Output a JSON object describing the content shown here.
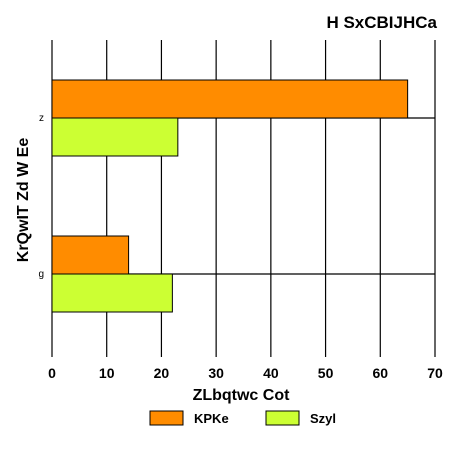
{
  "chart_data": {
    "type": "bar",
    "orientation": "horizontal",
    "title": "H  SxCBIJHCa",
    "xlabel": "ZLbqtwc Cot",
    "ylabel": "KrQwIT Zd W Ee",
    "categories": [
      "z",
      "g"
    ],
    "series": [
      {
        "name": "KPKe",
        "values": [
          65,
          14
        ],
        "color": "#ff8c00"
      },
      {
        "name": "Szyl",
        "values": [
          23,
          22
        ],
        "color": "#ccff33"
      }
    ],
    "xlim": [
      0,
      70
    ],
    "xticks": [
      0,
      10,
      20,
      30,
      40,
      50,
      60,
      70
    ],
    "grid": true,
    "legend_position": "bottom"
  }
}
